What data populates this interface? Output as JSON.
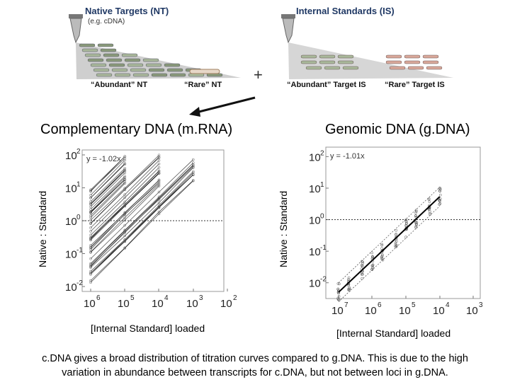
{
  "schematic": {
    "native_title": "Native Targets (NT)",
    "native_sub": "(e.g. cDNA)",
    "internal_title": "Internal Standards (IS)",
    "plus": "+",
    "abundant_nt": "“Abundant” NT",
    "rare_nt": "“Rare” NT",
    "abundant_is": "“Abundant” Target IS",
    "rare_is": "“Rare” Target IS"
  },
  "caption": {
    "line1": "c.DNA gives a broad distribution of titration curves compared to g.DNA.  This is due to the high",
    "line2": "variation in abundance between transcripts for c.DNA, but not between loci in g.DNA."
  },
  "chart_data": [
    {
      "type": "line",
      "title": "Complementary DNA (m.RNA)",
      "xlabel": "[Internal Standard] loaded",
      "ylabel": "Native : Standard",
      "annotation": "y = -1.02x",
      "x_ticks": [
        "10",
        "10",
        "10",
        "10",
        "10"
      ],
      "x_tick_exps": [
        "6",
        "5",
        "4",
        "3",
        "2"
      ],
      "x_values": [
        1000000,
        100000,
        10000,
        1000
      ],
      "y_ticks": [
        "10",
        "10",
        "10",
        "10",
        "10"
      ],
      "y_tick_exps": [
        "2",
        "1",
        "0",
        "-1",
        "-2"
      ],
      "ylim": [
        0.01,
        100
      ],
      "reference_line": 1
    },
    {
      "type": "line",
      "title": "Genomic DNA (g.DNA)",
      "xlabel": "[Internal Standard] loaded",
      "ylabel": "Native : Standard",
      "annotation": "y = -1.01x",
      "x_ticks": [
        "10",
        "10",
        "10",
        "10",
        "10"
      ],
      "x_tick_exps": [
        "7",
        "6",
        "5",
        "4",
        "3"
      ],
      "x_values": [
        10000000,
        5000000,
        2000000,
        1000000,
        500000,
        200000,
        100000,
        50000,
        20000,
        10000
      ],
      "y_ticks": [
        "10",
        "10",
        "10",
        "10",
        "10"
      ],
      "y_tick_exps": [
        "2",
        "1",
        "0",
        "-1",
        "-2"
      ],
      "ylim": [
        0.005,
        100
      ],
      "reference_line": 1
    }
  ]
}
